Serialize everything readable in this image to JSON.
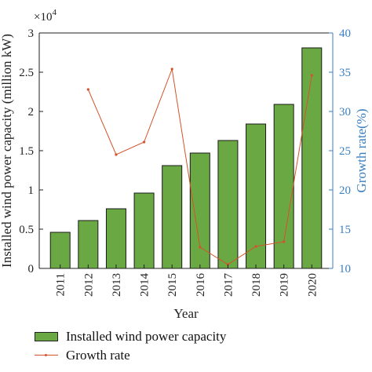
{
  "chart_data": {
    "type": "bar",
    "categories": [
      "2011",
      "2012",
      "2013",
      "2014",
      "2015",
      "2016",
      "2017",
      "2018",
      "2019",
      "2020"
    ],
    "xlabel": "Year",
    "ylabel": "Installed wind power capacity (million kW)",
    "ylabel_right": "Growth rate(%)",
    "y_multiplier": "×10",
    "y_multiplier_exp": "4",
    "ylim": [
      0,
      3
    ],
    "yticks": [
      "0",
      "0.5",
      "1",
      "1.5",
      "2",
      "2.5",
      "3"
    ],
    "ylim_right": [
      10,
      40
    ],
    "yticks_right": [
      "10",
      "15",
      "20",
      "25",
      "30",
      "35",
      "40"
    ],
    "series": [
      {
        "name": "Installed wind power capacity",
        "type": "bar",
        "axis": "left",
        "color": "#6aa843",
        "values": [
          0.46,
          0.61,
          0.76,
          0.96,
          1.31,
          1.47,
          1.63,
          1.84,
          2.09,
          2.81
        ]
      },
      {
        "name": "Growth rate",
        "type": "line",
        "axis": "right",
        "color": "#d4532b",
        "values": [
          null,
          32.8,
          24.5,
          26.1,
          35.4,
          12.7,
          10.5,
          12.8,
          13.4,
          34.6
        ]
      }
    ],
    "colors": {
      "right_axis": "#3a7fc1",
      "left_axis": "#222222"
    },
    "grid": false,
    "legend_position": "below"
  }
}
